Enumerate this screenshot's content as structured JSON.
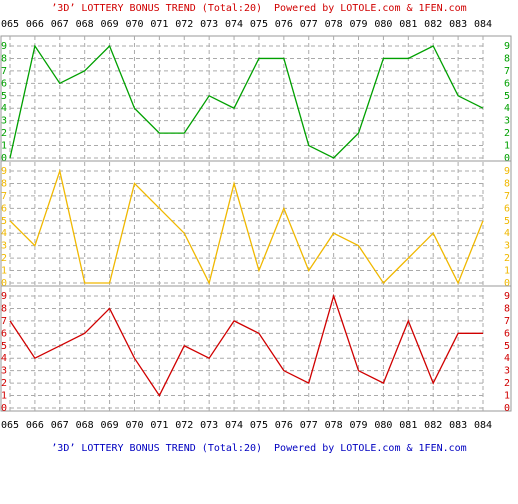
{
  "chart_data": {
    "type": "line",
    "title": "’3D’ LOTTERY BONUS TREND (Total:20)  Powered by LOTOLE.com & 1FEN.com",
    "footer": "’3D’ LOTTERY BONUS TREND (Total:20)  Powered by LOTOLE.com & 1FEN.com",
    "categories": [
      "065",
      "066",
      "067",
      "068",
      "069",
      "070",
      "071",
      "072",
      "073",
      "074",
      "075",
      "076",
      "077",
      "078",
      "079",
      "080",
      "081",
      "082",
      "083",
      "084"
    ],
    "series": [
      {
        "color": "#00a000",
        "values": [
          0,
          9,
          6,
          7,
          9,
          4,
          2,
          2,
          5,
          4,
          8,
          8,
          1,
          0,
          2,
          8,
          8,
          9,
          5,
          4
        ]
      },
      {
        "color": "#f0b800",
        "values": [
          5,
          3,
          9,
          0,
          0,
          8,
          6,
          4,
          0,
          8,
          1,
          6,
          1,
          4,
          3,
          0,
          2,
          4,
          0,
          5
        ]
      },
      {
        "color": "#d00000",
        "values": [
          7,
          4,
          5,
          6,
          8,
          4,
          1,
          5,
          4,
          7,
          6,
          3,
          2,
          9,
          3,
          2,
          7,
          2,
          6,
          6
        ]
      }
    ],
    "ylim": [
      0,
      9
    ],
    "yticks": [
      0,
      1,
      2,
      3,
      4,
      5,
      6,
      7,
      8,
      9
    ],
    "grid": true
  }
}
